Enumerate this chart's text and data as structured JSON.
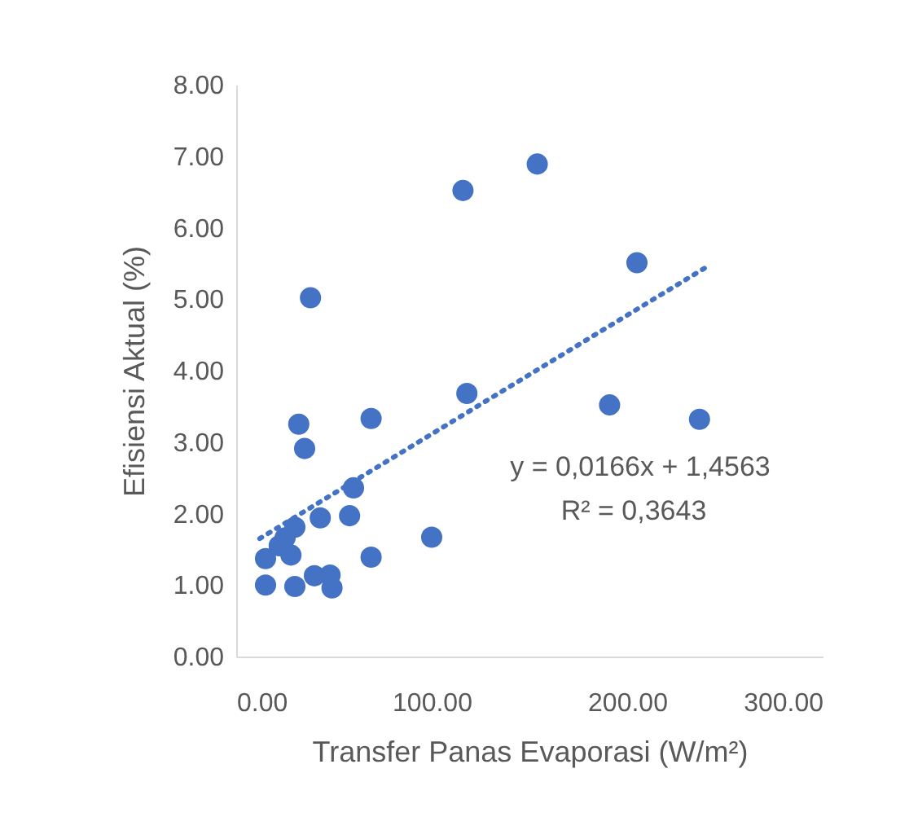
{
  "chart_data": {
    "type": "scatter",
    "xlabel": "Transfer Panas Evaporasi (W/m²)",
    "ylabel": "Efisiensi Aktual (%)",
    "xlim": [
      0,
      300
    ],
    "ylim": [
      0,
      8
    ],
    "xticks": [
      {
        "value": 0,
        "label": "0.00"
      },
      {
        "value": 100,
        "label": "100.00"
      },
      {
        "value": 200,
        "label": "200.00"
      },
      {
        "value": 300,
        "label": "300.00"
      }
    ],
    "yticks": [
      {
        "value": 0,
        "label": "0.00"
      },
      {
        "value": 1,
        "label": "1.00"
      },
      {
        "value": 2,
        "label": "2.00"
      },
      {
        "value": 3,
        "label": "3.00"
      },
      {
        "value": 4,
        "label": "4.00"
      },
      {
        "value": 5,
        "label": "5.00"
      },
      {
        "value": 6,
        "label": "6.00"
      },
      {
        "value": 7,
        "label": "7.00"
      },
      {
        "value": 8,
        "label": "8.00"
      }
    ],
    "grid": false,
    "annotations": [
      "y = 0,0166x + 1,4563",
      "R² = 0,3643"
    ],
    "series": [
      {
        "marker": "circle",
        "color": "#4472c4",
        "x": [
          38,
          32,
          35,
          69,
          60,
          43,
          58,
          30,
          25,
          22,
          28,
          15,
          69,
          100,
          15,
          30,
          40,
          48,
          49,
          118,
          116,
          154,
          205,
          191,
          237
        ],
        "values": [
          5.02,
          3.25,
          2.91,
          3.33,
          2.36,
          1.94,
          1.97,
          1.81,
          1.66,
          1.55,
          1.42,
          1.37,
          1.39,
          1.67,
          1.0,
          0.98,
          1.13,
          1.14,
          0.96,
          3.68,
          6.52,
          6.89,
          5.51,
          3.52,
          3.32
        ]
      },
      {
        "type": "line",
        "marker": "none",
        "color": "#4472c4",
        "line_style": "dotted",
        "x": [
          12,
          240
        ],
        "values": [
          1.65,
          5.44
        ]
      }
    ]
  }
}
